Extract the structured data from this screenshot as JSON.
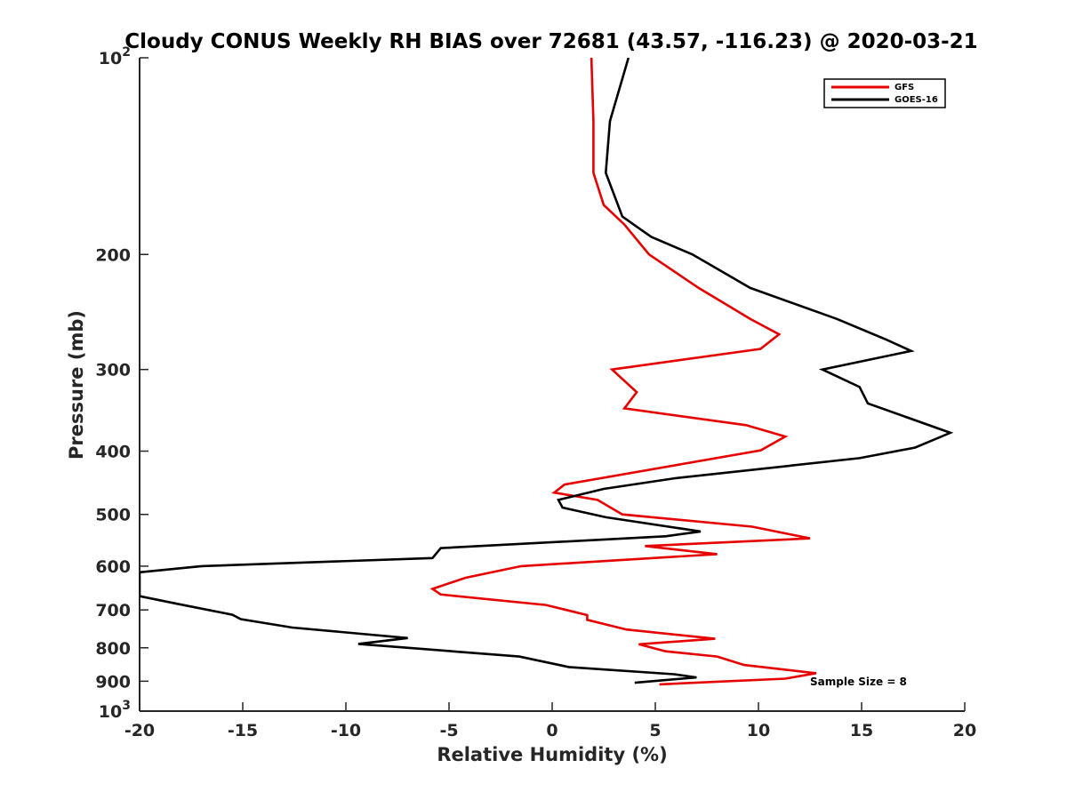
{
  "chart_data": {
    "type": "line",
    "title": "Cloudy CONUS Weekly RH BIAS over 72681 (43.57, -116.23) @ 2020-03-21",
    "xlabel": "Relative Humidity (%)",
    "ylabel": "Pressure (mb)",
    "xlim": [
      -20,
      20
    ],
    "ylim": [
      1000,
      100
    ],
    "y_scale": "log",
    "y_reversed": true,
    "x_ticks": [
      "-20",
      "-15",
      "-10",
      "-5",
      "0",
      "5",
      "10",
      "15",
      "20"
    ],
    "y_ticks": [
      {
        "value": 100,
        "base": "10",
        "exp": "2"
      },
      {
        "value": 200,
        "label": "200"
      },
      {
        "value": 300,
        "label": "300"
      },
      {
        "value": 400,
        "label": "400"
      },
      {
        "value": 500,
        "label": "500"
      },
      {
        "value": 600,
        "label": "600"
      },
      {
        "value": 700,
        "label": "700"
      },
      {
        "value": 800,
        "label": "800"
      },
      {
        "value": 900,
        "label": "900"
      },
      {
        "value": 1000,
        "base": "10",
        "exp": "3"
      }
    ],
    "legend_position": "top-right",
    "grid": false,
    "annotation": "Sample Size = 8",
    "series": [
      {
        "name": "GFS",
        "color": "#e60000",
        "points": [
          [
            1.9,
            100
          ],
          [
            2.0,
            125
          ],
          [
            2.0,
            150
          ],
          [
            2.5,
            168
          ],
          [
            3.5,
            180
          ],
          [
            4.7,
            200
          ],
          [
            7.1,
            225
          ],
          [
            9.6,
            251
          ],
          [
            11.0,
            265
          ],
          [
            10.1,
            279
          ],
          [
            2.9,
            300
          ],
          [
            4.1,
            325
          ],
          [
            3.5,
            344
          ],
          [
            9.4,
            365
          ],
          [
            11.3,
            380
          ],
          [
            10.1,
            399
          ],
          [
            0.6,
            450
          ],
          [
            0.1,
            463
          ],
          [
            2.2,
            475
          ],
          [
            3.4,
            500
          ],
          [
            9.7,
            522
          ],
          [
            12.5,
            544
          ],
          [
            4.5,
            559
          ],
          [
            8.0,
            575
          ],
          [
            -1.5,
            600
          ],
          [
            -4.2,
            625
          ],
          [
            -5.8,
            650
          ],
          [
            -5.4,
            663
          ],
          [
            -0.3,
            688
          ],
          [
            1.7,
            713
          ],
          [
            1.7,
            725
          ],
          [
            3.6,
            750
          ],
          [
            7.9,
            775
          ],
          [
            4.2,
            790
          ],
          [
            5.5,
            810
          ],
          [
            8.0,
            825
          ],
          [
            9.3,
            850
          ],
          [
            12.8,
            875
          ],
          [
            11.3,
            892
          ],
          [
            5.2,
            910
          ]
        ]
      },
      {
        "name": "GOES-16",
        "color": "#000000",
        "points": [
          [
            3.7,
            100
          ],
          [
            2.8,
            125
          ],
          [
            2.6,
            150
          ],
          [
            3.4,
            175
          ],
          [
            4.8,
            188
          ],
          [
            6.8,
            200
          ],
          [
            9.6,
            225
          ],
          [
            13.8,
            251
          ],
          [
            16.2,
            270
          ],
          [
            17.4,
            281
          ],
          [
            13.1,
            300
          ],
          [
            14.9,
            319
          ],
          [
            15.3,
            338
          ],
          [
            19.3,
            375
          ],
          [
            17.6,
            395
          ],
          [
            14.9,
            410
          ],
          [
            6.0,
            440
          ],
          [
            2.5,
            457
          ],
          [
            0.3,
            475
          ],
          [
            0.5,
            488
          ],
          [
            2.6,
            505
          ],
          [
            7.2,
            531
          ],
          [
            5.5,
            540
          ],
          [
            -5.4,
            563
          ],
          [
            -5.8,
            583
          ],
          [
            -17.0,
            600
          ],
          [
            -20.0,
            613
          ],
          [
            -20.0,
            667
          ],
          [
            -18.2,
            685
          ],
          [
            -15.5,
            712
          ],
          [
            -15.1,
            723
          ],
          [
            -12.6,
            745
          ],
          [
            -7.0,
            773
          ],
          [
            -9.4,
            789
          ],
          [
            -1.6,
            825
          ],
          [
            0.8,
            856
          ],
          [
            5.9,
            878
          ],
          [
            7.0,
            888
          ],
          [
            4.0,
            905
          ]
        ]
      }
    ]
  }
}
